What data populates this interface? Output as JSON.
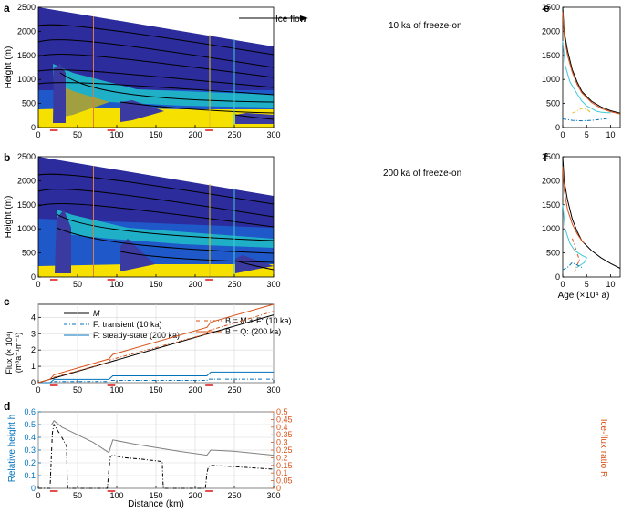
{
  "panel_labels": {
    "a": "a",
    "b": "b",
    "c": "c",
    "d": "d",
    "e": "e",
    "f": "f"
  },
  "axis_text": {
    "height_ylabel": "Height (m)",
    "flux_ylabel_line1": "Flux (× 10⁴)",
    "flux_ylabel_line2": "(m³a⁻¹m⁻¹)",
    "rel_height_ylabel": "Relative height h",
    "ratio_ylabel": "Ice-flux ratio R",
    "distance_xlabel": "Distance (km)",
    "age_xlabel": "Age (×10⁴ a)"
  },
  "annotations": {
    "ice_flow": "Ice flow",
    "freeze_10": "10 ka of freeze-on",
    "freeze_200": "200 ka of freeze-on"
  },
  "colors": {
    "deep_blue": "#2c2c9c",
    "mid_blue": "#1f58c8",
    "cyan": "#1fb0c8",
    "teal": "#4aa0a0",
    "yellow": "#f6e000",
    "olive": "#a0a040",
    "orange": "#d95319",
    "blue_line": "#0072bd",
    "grey_line": "#808080",
    "red_mark": "#e02020",
    "vline_orange": "#e07a40",
    "vline_yellow": "#e0c030",
    "vline_cyan": "#40c8d8"
  },
  "chart_data": [
    {
      "id": "a",
      "type": "heatmap",
      "x_range": [
        0,
        300
      ],
      "y_range": [
        0,
        2500
      ],
      "x_ticks": [
        0,
        50,
        100,
        150,
        200,
        250,
        300
      ],
      "y_ticks": [
        0,
        500,
        1000,
        1500,
        2000,
        2500
      ],
      "surface": {
        "x": [
          0,
          300
        ],
        "height": [
          2500,
          1640
        ]
      },
      "freeze_on_zones": [
        [
          15,
          25
        ],
        [
          88,
          98
        ],
        [
          213,
          222
        ]
      ],
      "profile_lines_km": [
        60,
        178,
        250
      ]
    },
    {
      "id": "b",
      "type": "heatmap",
      "x_range": [
        0,
        300
      ],
      "y_range": [
        0,
        2500
      ],
      "x_ticks": [
        0,
        50,
        100,
        150,
        200,
        250,
        300
      ],
      "y_ticks": [
        0,
        500,
        1000,
        1500,
        2000,
        2500
      ],
      "surface": {
        "x": [
          0,
          300
        ],
        "height": [
          2500,
          1640
        ]
      },
      "freeze_on_zones": [
        [
          15,
          25
        ],
        [
          88,
          98
        ],
        [
          213,
          222
        ]
      ],
      "profile_lines_km": [
        60,
        178,
        250
      ]
    },
    {
      "id": "c",
      "type": "line",
      "x_range": [
        0,
        300
      ],
      "y_range": [
        0,
        4.8
      ],
      "x_ticks": [
        0,
        50,
        100,
        150,
        200,
        250,
        300
      ],
      "y_ticks": [
        0,
        1,
        2,
        3,
        4
      ],
      "series": [
        {
          "name": "M",
          "style": "solid",
          "color": "#000000",
          "x": [
            0,
            300
          ],
          "y": [
            0,
            4.15
          ]
        },
        {
          "name": "F: transient (10 ka)",
          "style": "dashdot",
          "color": "#0072bd",
          "x": [
            0,
            15,
            16,
            90,
            91,
            215,
            216,
            300
          ],
          "y": [
            0,
            0,
            0.07,
            0.07,
            0.14,
            0.14,
            0.22,
            0.22
          ]
        },
        {
          "name": "F: steady-state (200 ka)",
          "style": "solid",
          "color": "#0072bd",
          "x": [
            0,
            15,
            20,
            90,
            95,
            215,
            220,
            300
          ],
          "y": [
            0,
            0,
            0.2,
            0.2,
            0.42,
            0.42,
            0.65,
            0.65
          ]
        },
        {
          "name": "B = M + F:  (10 ka)",
          "style": "dashdot",
          "color": "#d95319",
          "x": [
            0,
            15,
            16,
            90,
            91,
            215,
            216,
            300
          ],
          "y": [
            0,
            0.21,
            0.28,
            1.25,
            1.39,
            2.99,
            3.17,
            4.37
          ]
        },
        {
          "name": "B = Q:  (200 ka)",
          "style": "solid",
          "color": "#d95319",
          "x": [
            0,
            15,
            20,
            90,
            95,
            215,
            220,
            300
          ],
          "y": [
            0,
            0.21,
            0.48,
            1.45,
            1.73,
            3.39,
            3.71,
            4.8
          ]
        }
      ],
      "freeze_on_zones": [
        [
          15,
          25
        ],
        [
          88,
          98
        ],
        [
          213,
          222
        ]
      ]
    },
    {
      "id": "d",
      "type": "line",
      "x_range": [
        0,
        300
      ],
      "y_range": [
        0,
        0.6
      ],
      "y2_range": [
        0,
        0.5
      ],
      "x_ticks": [
        0,
        50,
        100,
        150,
        200,
        250,
        300
      ],
      "y_ticks": [
        0,
        0.1,
        0.2,
        0.3,
        0.4,
        0.5,
        0.6
      ],
      "y2_ticks": [
        0,
        0.05,
        0.1,
        0.15,
        0.2,
        0.25,
        0.3,
        0.35,
        0.4,
        0.45,
        0.5
      ],
      "series": [
        {
          "style": "solid",
          "color": "#808080",
          "axis": "left",
          "x": [
            17,
            20,
            30,
            50,
            70,
            90,
            95,
            120,
            150,
            180,
            215,
            220,
            250,
            300
          ],
          "y": [
            0.5,
            0.53,
            0.48,
            0.42,
            0.36,
            0.28,
            0.38,
            0.35,
            0.32,
            0.29,
            0.26,
            0.3,
            0.29,
            0.26
          ]
        },
        {
          "style": "dashdot",
          "color": "#000000",
          "axis": "left",
          "x": [
            0,
            15,
            17,
            18,
            20,
            25,
            30,
            36,
            37,
            37.5,
            88,
            90,
            92,
            95,
            110,
            130,
            158,
            159,
            159.5,
            213,
            215,
            217,
            220,
            250,
            300
          ],
          "y": [
            0,
            0,
            0.3,
            0.44,
            0.5,
            0.45,
            0.4,
            0.33,
            0.05,
            0,
            0,
            0.15,
            0.25,
            0.26,
            0.24,
            0.23,
            0.21,
            0.05,
            0,
            0,
            0.12,
            0.17,
            0.18,
            0.17,
            0.15
          ]
        }
      ],
      "freeze_on_zones": [
        [
          15,
          25
        ],
        [
          88,
          98
        ],
        [
          213,
          222
        ]
      ]
    },
    {
      "id": "e",
      "type": "line",
      "x_range": [
        0,
        12
      ],
      "y_range": [
        0,
        2500
      ],
      "x_ticks": [
        0,
        5,
        10
      ],
      "y_ticks": [
        0,
        500,
        1000,
        1500,
        2000,
        2500
      ],
      "series": [
        {
          "style": "solid",
          "color": "#000000",
          "x": [
            0,
            0.3,
            1,
            2,
            3,
            4,
            6,
            8,
            10,
            12
          ],
          "y": [
            2500,
            2000,
            1600,
            1200,
            950,
            750,
            550,
            430,
            350,
            300
          ]
        },
        {
          "style": "solid",
          "color": "#d95319",
          "x": [
            0,
            0.3,
            1,
            2,
            3,
            4,
            6,
            8,
            10,
            12
          ],
          "y": [
            2400,
            1900,
            1500,
            1150,
            900,
            720,
            520,
            400,
            330,
            280
          ]
        },
        {
          "style": "solid",
          "color": "#40c8d8",
          "x": [
            0,
            0.5,
            1.5,
            3,
            4,
            5,
            6,
            7,
            8,
            9,
            10
          ],
          "y": [
            1800,
            1300,
            950,
            700,
            550,
            450,
            400,
            340,
            320,
            310,
            305
          ]
        },
        {
          "style": "dashdot",
          "color": "#0072bd",
          "x": [
            0,
            2,
            4,
            6,
            8,
            10
          ],
          "y": [
            180,
            150,
            140,
            150,
            170,
            200
          ]
        },
        {
          "style": "dashdot",
          "color": "#e0c030",
          "x": [
            2,
            3,
            4,
            5,
            6
          ],
          "y": [
            300,
            350,
            400,
            380,
            300
          ]
        }
      ]
    },
    {
      "id": "f",
      "type": "line",
      "x_range": [
        0,
        12
      ],
      "y_range": [
        0,
        2500
      ],
      "x_ticks": [
        0,
        5,
        10
      ],
      "y_ticks": [
        0,
        500,
        1000,
        1500,
        2000,
        2500
      ],
      "series": [
        {
          "style": "solid",
          "color": "#000000",
          "x": [
            0,
            0.3,
            1,
            2,
            3,
            4,
            6,
            8,
            10,
            12
          ],
          "y": [
            2500,
            2000,
            1600,
            1200,
            950,
            750,
            550,
            400,
            280,
            180
          ]
        },
        {
          "style": "solid",
          "color": "#d95319",
          "x": [
            0,
            0.3,
            1,
            2,
            3,
            4,
            4.5
          ],
          "y": [
            2300,
            1800,
            1400,
            1100,
            900,
            750,
            700
          ]
        },
        {
          "style": "dashdot",
          "color": "#d95319",
          "x": [
            2,
            2.5,
            3,
            3.5,
            3,
            2.5
          ],
          "y": [
            800,
            650,
            500,
            350,
            250,
            100
          ]
        },
        {
          "style": "solid",
          "color": "#40c8d8",
          "x": [
            0,
            0.5,
            1.5,
            2.5,
            4,
            5,
            4.5,
            3
          ],
          "y": [
            1500,
            1000,
            700,
            550,
            450,
            400,
            300,
            200
          ]
        },
        {
          "style": "dashdot",
          "color": "#0072bd",
          "x": [
            0,
            1,
            2,
            3,
            4
          ],
          "y": [
            150,
            200,
            300,
            250,
            200
          ]
        }
      ]
    }
  ]
}
